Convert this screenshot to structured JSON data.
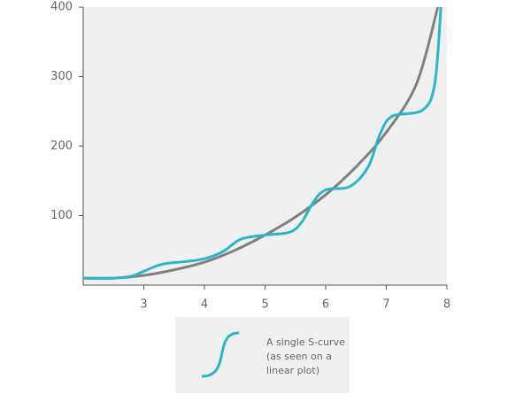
{
  "chart_data": {
    "type": "line",
    "xlim": [
      2,
      8
    ],
    "xticks": [
      3,
      4,
      5,
      6,
      7,
      8
    ],
    "ylim": [
      0,
      400
    ],
    "yticks": [
      100,
      200,
      300,
      400
    ],
    "background": "#f0f0f0",
    "series": [
      {
        "color": "#808080",
        "x": [
          2,
          2.5,
          3,
          3.5,
          4,
          4.5,
          5,
          5.5,
          6,
          6.5,
          7,
          7.5,
          7.85
        ],
        "values": [
          10,
          10,
          14,
          22,
          33,
          50,
          72,
          98,
          130,
          170,
          220,
          290,
          400
        ]
      },
      {
        "color": "#2bb5c8",
        "name_lines": [
          "A single S-curve",
          "(as seen on a",
          "linear plot)"
        ],
        "x": [
          2,
          2.5,
          2.8,
          3,
          3.3,
          3.7,
          4,
          4.3,
          4.6,
          5,
          5.4,
          5.6,
          5.8,
          6,
          6.4,
          6.7,
          6.9,
          7.1,
          7.6,
          7.8,
          7.9
        ],
        "values": [
          10,
          10,
          13,
          20,
          30,
          34,
          38,
          48,
          66,
          72,
          76,
          90,
          120,
          137,
          142,
          170,
          218,
          243,
          252,
          290,
          400
        ]
      }
    ]
  }
}
